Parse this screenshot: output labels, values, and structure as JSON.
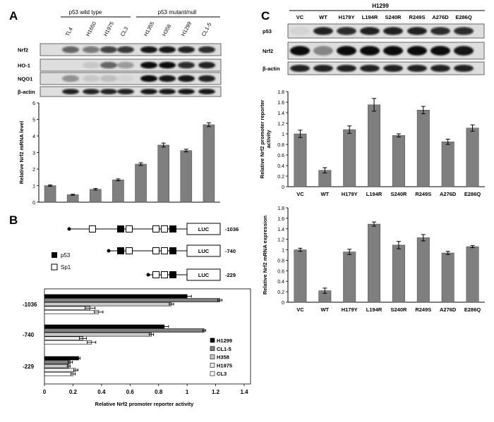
{
  "panels": {
    "A": {
      "letter": "A",
      "group_left": "p53 wild type",
      "group_right": "p53 mutant/null",
      "lanes": [
        "TL4",
        "H1650",
        "H1975",
        "CL3",
        "H1355",
        "H358",
        "H1299",
        "CL1-5"
      ],
      "blot_labels": [
        "Nrf2",
        "HO-1",
        "NQO1",
        "β-actin"
      ]
    },
    "B": {
      "letter": "B",
      "constructs": [
        "-1036",
        "-740",
        "-229"
      ],
      "luc_label": "LUC",
      "key": [
        {
          "label": "p53"
        },
        {
          "label": "Sp1"
        }
      ]
    },
    "C": {
      "letter": "C",
      "cell_line": "H1299",
      "lanes": [
        "VC",
        "WT",
        "H179Y",
        "L194R",
        "S240R",
        "R249S",
        "A276D",
        "E286Q"
      ],
      "blot_labels": [
        "p53",
        "Nrf2",
        "β-actin"
      ]
    }
  },
  "chart_data": [
    {
      "id": "A-mrna",
      "type": "bar",
      "categories": [
        "TL4",
        "H1650",
        "H1975",
        "CL3",
        "H1355",
        "H358",
        "H1299",
        "CL1-5"
      ],
      "values": [
        1.0,
        0.45,
        0.78,
        1.35,
        2.3,
        3.45,
        3.12,
        4.68
      ],
      "errors": [
        0.04,
        0.03,
        0.05,
        0.06,
        0.08,
        0.12,
        0.08,
        0.12
      ],
      "ylabel": "Relative Nrf2 mRNA level",
      "ylim": [
        0,
        6
      ],
      "yticks": [
        "0",
        "1",
        "2",
        "3",
        "4",
        "5",
        "6"
      ],
      "color": "#7f7f7f"
    },
    {
      "id": "B-promoter",
      "type": "bar",
      "orientation": "horizontal",
      "categories": [
        "-1036",
        "-740",
        "-229"
      ],
      "series": [
        {
          "name": "H1299",
          "fill": "#000000",
          "values": [
            1.0,
            0.84,
            0.24
          ],
          "errors": [
            0.03,
            0.03,
            0.01
          ]
        },
        {
          "name": "CL1-5",
          "fill": "#808080",
          "values": [
            1.23,
            1.12,
            0.18
          ],
          "errors": [
            0.015,
            0.01,
            0.015
          ]
        },
        {
          "name": "H358",
          "fill": "#c8c8c8",
          "values": [
            0.89,
            0.75,
            0.17
          ],
          "errors": [
            0.015,
            0.015,
            0.01
          ]
        },
        {
          "name": "H1975",
          "fill": "#ebebeb",
          "values": [
            0.32,
            0.27,
            0.22
          ],
          "errors": [
            0.035,
            0.025,
            0.015
          ]
        },
        {
          "name": "CL3",
          "fill": "#ffffff",
          "values": [
            0.38,
            0.33,
            0.2
          ],
          "errors": [
            0.03,
            0.03,
            0.015
          ]
        }
      ],
      "xlabel": "Relative Nrf2 promoter reporter activity",
      "xlim": [
        0,
        1.4
      ],
      "xticks": [
        "0",
        "0.2",
        "0.4",
        "0.6",
        "0.8",
        "1",
        "1.2",
        "1.4"
      ]
    },
    {
      "id": "C-promoter",
      "type": "bar",
      "categories": [
        "VC",
        "WT",
        "H179Y",
        "L194R",
        "S240R",
        "R249S",
        "A276D",
        "E286Q"
      ],
      "values": [
        1.0,
        0.31,
        1.08,
        1.55,
        0.97,
        1.45,
        0.85,
        1.11
      ],
      "errors": [
        0.07,
        0.05,
        0.07,
        0.12,
        0.03,
        0.07,
        0.05,
        0.06
      ],
      "ylabel": "Relative Nrf2 promoter reporter activity",
      "ylim": [
        0,
        1.8
      ],
      "yticks": [
        "0",
        "0.2",
        "0.4",
        "0.6",
        "0.8",
        "1",
        "1.2",
        "1.4",
        "1.6",
        "1.8"
      ],
      "color": "#7f7f7f"
    },
    {
      "id": "C-mrna",
      "type": "bar",
      "categories": [
        "VC",
        "WT",
        "H179Y",
        "L194R",
        "S240R",
        "R249S",
        "A276D",
        "E286Q"
      ],
      "values": [
        1.0,
        0.22,
        0.96,
        1.49,
        1.09,
        1.23,
        0.94,
        1.06
      ],
      "errors": [
        0.03,
        0.05,
        0.05,
        0.04,
        0.07,
        0.06,
        0.03,
        0.02
      ],
      "ylabel": "Relative Nrf2 mRNA expression",
      "ylim": [
        0,
        1.8
      ],
      "yticks": [
        "0",
        "0.2",
        "0.4",
        "0.6",
        "0.8",
        "1",
        "1.2",
        "1.4",
        "1.6",
        "1.8"
      ],
      "color": "#7f7f7f"
    }
  ]
}
